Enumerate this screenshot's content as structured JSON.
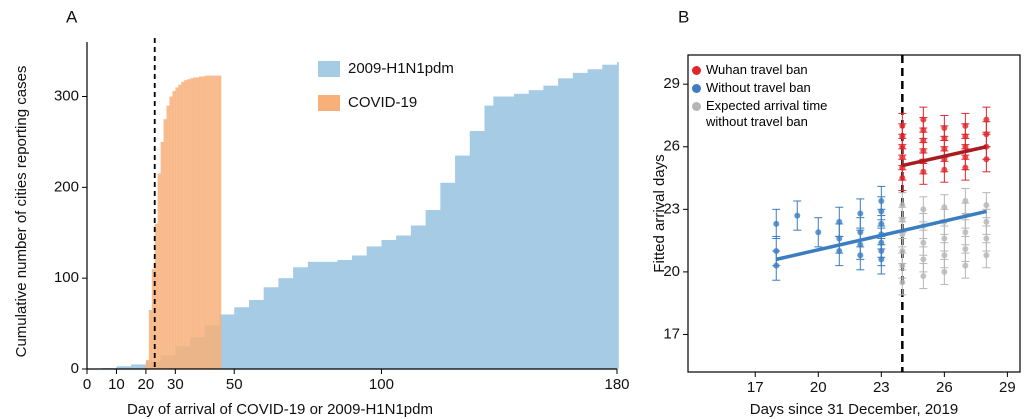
{
  "chart_data": [
    {
      "type": "step",
      "panel_label": "A",
      "ylabel": "Cumulative number of cities reporting cases",
      "xlabel": "Day of arrival of COVID-19 or 2009-H1N1pdm",
      "xlim": [
        0,
        180
      ],
      "ylim": [
        0,
        360
      ],
      "xticks": [
        0,
        10,
        20,
        30,
        50,
        100,
        180
      ],
      "yticks": [
        0,
        100,
        200,
        300
      ],
      "vline": 23,
      "series": [
        {
          "name": "2009-H1N1pdm",
          "color": "#a6cce5",
          "x": [
            0,
            5,
            10,
            15,
            20,
            25,
            30,
            35,
            40,
            45,
            50,
            55,
            60,
            65,
            70,
            75,
            80,
            85,
            90,
            95,
            100,
            105,
            110,
            115,
            120,
            125,
            130,
            135,
            138,
            145,
            150,
            155,
            160,
            165,
            170,
            175,
            180
          ],
          "values": [
            0,
            1,
            3,
            5,
            8,
            15,
            25,
            35,
            48,
            60,
            68,
            76,
            90,
            100,
            112,
            118,
            118,
            120,
            125,
            135,
            142,
            147,
            158,
            175,
            205,
            235,
            262,
            290,
            300,
            303,
            307,
            312,
            320,
            326,
            330,
            335,
            338
          ]
        },
        {
          "name": "COVID-19",
          "color": "#f7b07a",
          "x": [
            19,
            20,
            21,
            22,
            23,
            24,
            25,
            26,
            27,
            28,
            29,
            30,
            31,
            32,
            33,
            34,
            35,
            36,
            38,
            40,
            45
          ],
          "values": [
            2,
            10,
            65,
            110,
            160,
            215,
            250,
            275,
            290,
            300,
            306,
            310,
            313,
            316,
            318,
            319,
            320,
            321,
            322,
            323,
            323
          ]
        }
      ]
    },
    {
      "type": "scatter",
      "panel_label": "B",
      "ylabel": "Fitted arrival days",
      "xlabel": "Days since 31 December, 2019",
      "xlim": [
        13.8,
        29.6
      ],
      "ylim": [
        15.2,
        30.4
      ],
      "xticks": [
        17,
        20,
        23,
        26,
        29
      ],
      "yticks": [
        17,
        20,
        23,
        26,
        29
      ],
      "vline": 24,
      "series": [
        {
          "name": "Wuhan travel ban",
          "color": "#e0262c",
          "error": 0.6,
          "x": [
            24,
            24,
            24,
            24,
            24,
            24,
            25,
            25,
            25,
            25,
            25,
            25,
            26,
            26,
            26,
            26,
            26,
            27,
            27,
            27,
            27,
            27,
            28,
            28,
            28,
            28
          ],
          "values": [
            24.5,
            25.0,
            25.5,
            26.0,
            26.5,
            27.0,
            24.8,
            25.3,
            25.8,
            26.3,
            26.8,
            27.3,
            24.9,
            25.4,
            25.9,
            26.4,
            26.9,
            25.0,
            25.5,
            26.0,
            26.5,
            27.0,
            25.4,
            26.0,
            26.6,
            27.3
          ]
        },
        {
          "name": "Without travel ban",
          "color": "#3a7dc0",
          "error": 0.7,
          "x": [
            18,
            18,
            18,
            19,
            20,
            21,
            21,
            21,
            22,
            22,
            22,
            22,
            23,
            23,
            23,
            23,
            23,
            23,
            23
          ],
          "values": [
            22.3,
            21.0,
            20.3,
            22.7,
            21.9,
            22.4,
            21.6,
            21.0,
            22.8,
            21.9,
            21.3,
            20.8,
            23.4,
            22.9,
            22.3,
            21.8,
            21.4,
            21.0,
            20.6
          ]
        },
        {
          "name": "Expected arrival time without travel ban",
          "color": "#b5b5b5",
          "error": 0.6,
          "x": [
            24,
            24,
            24,
            24,
            24,
            24,
            25,
            25,
            25,
            25,
            25,
            26,
            26,
            26,
            26,
            26,
            27,
            27,
            27,
            27,
            27,
            28,
            28,
            28,
            28
          ],
          "values": [
            19.5,
            20.3,
            21.0,
            21.8,
            22.5,
            23.2,
            19.8,
            20.6,
            21.4,
            22.2,
            23.0,
            20.0,
            20.8,
            21.6,
            22.4,
            23.1,
            20.3,
            21.1,
            21.9,
            22.7,
            23.4,
            20.8,
            21.6,
            22.4,
            23.2
          ]
        }
      ],
      "fits": [
        {
          "color": "#a81b21",
          "x": [
            24,
            28
          ],
          "values": [
            25.1,
            26.0
          ]
        },
        {
          "color": "#3a7dc0",
          "x": [
            18,
            28
          ],
          "values": [
            20.6,
            22.9
          ]
        }
      ]
    }
  ]
}
